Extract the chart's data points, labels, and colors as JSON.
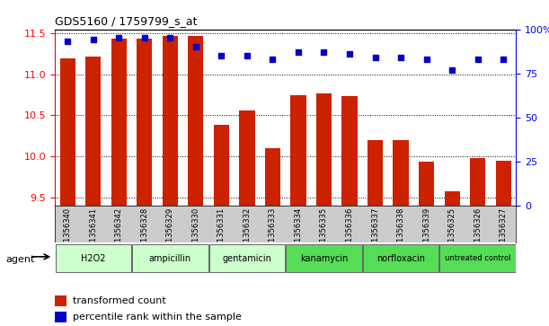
{
  "title": "GDS5160 / 1759799_s_at",
  "samples": [
    "GSM1356340",
    "GSM1356341",
    "GSM1356342",
    "GSM1356328",
    "GSM1356329",
    "GSM1356330",
    "GSM1356331",
    "GSM1356332",
    "GSM1356333",
    "GSM1356334",
    "GSM1356335",
    "GSM1356336",
    "GSM1356337",
    "GSM1356338",
    "GSM1356339",
    "GSM1356325",
    "GSM1356326",
    "GSM1356327"
  ],
  "bar_values": [
    11.2,
    11.22,
    11.44,
    11.44,
    11.47,
    11.47,
    10.38,
    10.56,
    10.1,
    10.75,
    10.77,
    10.73,
    10.2,
    10.2,
    9.93,
    9.57,
    9.98,
    9.95
  ],
  "percentile_values": [
    93,
    94,
    95,
    95,
    95,
    90,
    85,
    85,
    83,
    87,
    87,
    86,
    84,
    84,
    83,
    77,
    83,
    83
  ],
  "ylim_left": [
    9.4,
    11.55
  ],
  "ylim_right": [
    0,
    100
  ],
  "yticks_left": [
    9.5,
    10.0,
    10.5,
    11.0,
    11.5
  ],
  "yticks_right": [
    0,
    25,
    50,
    75,
    100
  ],
  "ytick_right_labels": [
    "0",
    "25",
    "50",
    "75",
    "100%"
  ],
  "groups": [
    {
      "label": "H2O2",
      "start": 0,
      "end": 3,
      "color": "#ccffcc"
    },
    {
      "label": "ampicillin",
      "start": 3,
      "end": 6,
      "color": "#ccffcc"
    },
    {
      "label": "gentamicin",
      "start": 6,
      "end": 9,
      "color": "#ccffcc"
    },
    {
      "label": "kanamycin",
      "start": 9,
      "end": 12,
      "color": "#55dd55"
    },
    {
      "label": "norfloxacin",
      "start": 12,
      "end": 15,
      "color": "#55dd55"
    },
    {
      "label": "untreated control",
      "start": 15,
      "end": 18,
      "color": "#55dd55"
    }
  ],
  "bar_color": "#cc2200",
  "dot_color": "#0000cc",
  "bar_bottom": 9.4,
  "agent_label": "agent",
  "legend_bar": "transformed count",
  "legend_dot": "percentile rank within the sample",
  "background_color": "#ffffff",
  "sample_area_color": "#cccccc"
}
